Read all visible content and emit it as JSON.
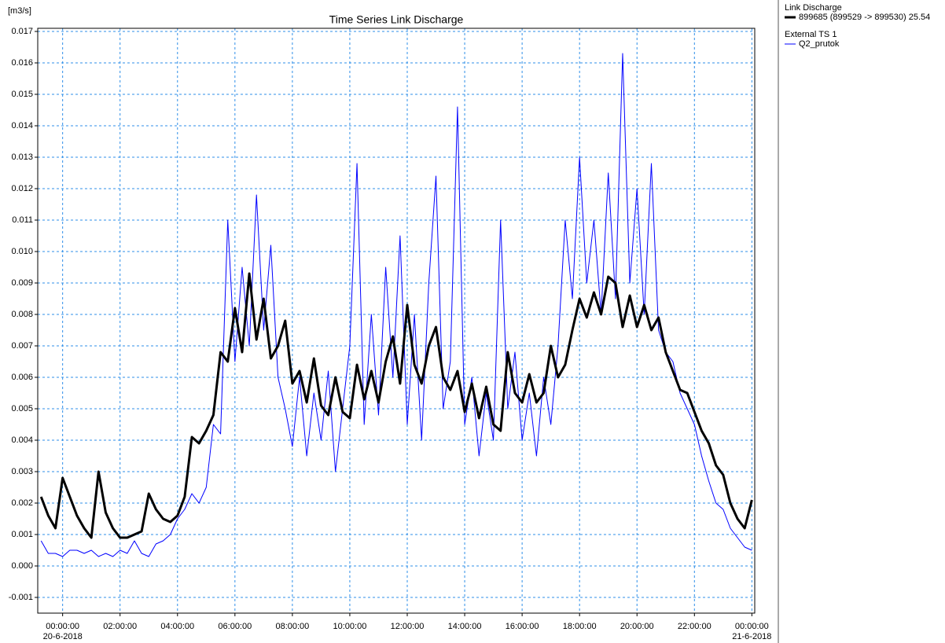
{
  "chart_data": {
    "type": "line",
    "title": "Time Series Link Discharge",
    "y_unit": "[m3/s]",
    "x": [
      "2018-06-19 23:15:00",
      "2018-06-19 23:30:00",
      "2018-06-19 23:45:00",
      "2018-06-20 00:00:00",
      "2018-06-20 00:15:00",
      "2018-06-20 00:30:00",
      "2018-06-20 00:45:00",
      "2018-06-20 01:00:00",
      "2018-06-20 01:15:00",
      "2018-06-20 01:30:00",
      "2018-06-20 01:45:00",
      "2018-06-20 02:00:00",
      "2018-06-20 02:15:00",
      "2018-06-20 02:30:00",
      "2018-06-20 02:45:00",
      "2018-06-20 03:00:00",
      "2018-06-20 03:15:00",
      "2018-06-20 03:30:00",
      "2018-06-20 03:45:00",
      "2018-06-20 04:00:00",
      "2018-06-20 04:15:00",
      "2018-06-20 04:30:00",
      "2018-06-20 04:45:00",
      "2018-06-20 05:00:00",
      "2018-06-20 05:15:00",
      "2018-06-20 05:30:00",
      "2018-06-20 05:45:00",
      "2018-06-20 06:00:00",
      "2018-06-20 06:15:00",
      "2018-06-20 06:30:00",
      "2018-06-20 06:45:00",
      "2018-06-20 07:00:00",
      "2018-06-20 07:15:00",
      "2018-06-20 07:30:00",
      "2018-06-20 07:45:00",
      "2018-06-20 08:00:00",
      "2018-06-20 08:15:00",
      "2018-06-20 08:30:00",
      "2018-06-20 08:45:00",
      "2018-06-20 09:00:00",
      "2018-06-20 09:15:00",
      "2018-06-20 09:30:00",
      "2018-06-20 09:45:00",
      "2018-06-20 10:00:00",
      "2018-06-20 10:15:00",
      "2018-06-20 10:30:00",
      "2018-06-20 10:45:00",
      "2018-06-20 11:00:00",
      "2018-06-20 11:15:00",
      "2018-06-20 11:30:00",
      "2018-06-20 11:45:00",
      "2018-06-20 12:00:00",
      "2018-06-20 12:15:00",
      "2018-06-20 12:30:00",
      "2018-06-20 12:45:00",
      "2018-06-20 13:00:00",
      "2018-06-20 13:15:00",
      "2018-06-20 13:30:00",
      "2018-06-20 13:45:00",
      "2018-06-20 14:00:00",
      "2018-06-20 14:15:00",
      "2018-06-20 14:30:00",
      "2018-06-20 14:45:00",
      "2018-06-20 15:00:00",
      "2018-06-20 15:15:00",
      "2018-06-20 15:30:00",
      "2018-06-20 15:45:00",
      "2018-06-20 16:00:00",
      "2018-06-20 16:15:00",
      "2018-06-20 16:30:00",
      "2018-06-20 16:45:00",
      "2018-06-20 17:00:00",
      "2018-06-20 17:15:00",
      "2018-06-20 17:30:00",
      "2018-06-20 17:45:00",
      "2018-06-20 18:00:00",
      "2018-06-20 18:15:00",
      "2018-06-20 18:30:00",
      "2018-06-20 18:45:00",
      "2018-06-20 19:00:00",
      "2018-06-20 19:15:00",
      "2018-06-20 19:30:00",
      "2018-06-20 19:45:00",
      "2018-06-20 20:00:00",
      "2018-06-20 20:15:00",
      "2018-06-20 20:30:00",
      "2018-06-20 20:45:00",
      "2018-06-20 21:00:00",
      "2018-06-20 21:15:00",
      "2018-06-20 21:30:00",
      "2018-06-20 21:45:00",
      "2018-06-20 22:00:00",
      "2018-06-20 22:15:00",
      "2018-06-20 22:30:00",
      "2018-06-20 22:45:00",
      "2018-06-20 23:00:00",
      "2018-06-20 23:15:00",
      "2018-06-20 23:30:00",
      "2018-06-20 23:45:00",
      "2018-06-21 00:00:00"
    ],
    "series": [
      {
        "group": "Link Discharge",
        "name": "899685 (899529 -> 899530)  25.54",
        "color": "#000000",
        "width": 3,
        "values": [
          0.0022,
          0.0016,
          0.0012,
          0.0028,
          0.0022,
          0.0016,
          0.0012,
          0.0009,
          0.003,
          0.0017,
          0.0012,
          0.0009,
          0.0009,
          0.001,
          0.0011,
          0.0023,
          0.0018,
          0.0015,
          0.0014,
          0.0016,
          0.0022,
          0.0041,
          0.0039,
          0.0043,
          0.0048,
          0.0068,
          0.0065,
          0.0082,
          0.0068,
          0.0093,
          0.0072,
          0.0085,
          0.0066,
          0.007,
          0.0078,
          0.0058,
          0.0062,
          0.0052,
          0.0066,
          0.0051,
          0.0048,
          0.006,
          0.0049,
          0.0047,
          0.0064,
          0.0053,
          0.0062,
          0.0052,
          0.0065,
          0.0073,
          0.0058,
          0.0083,
          0.0064,
          0.0058,
          0.007,
          0.0076,
          0.006,
          0.0056,
          0.0062,
          0.0049,
          0.0058,
          0.0047,
          0.0057,
          0.0045,
          0.0043,
          0.0068,
          0.0055,
          0.0052,
          0.0061,
          0.0052,
          0.0055,
          0.007,
          0.006,
          0.0064,
          0.0075,
          0.0085,
          0.0079,
          0.0087,
          0.008,
          0.0092,
          0.009,
          0.0076,
          0.0086,
          0.0076,
          0.0083,
          0.0075,
          0.0079,
          0.0068,
          0.0062,
          0.0056,
          0.0055,
          0.0049,
          0.0043,
          0.0039,
          0.0032,
          0.0029,
          0.002,
          0.0015,
          0.0012,
          0.0021
        ]
      },
      {
        "group": "External TS 1",
        "name": "Q2_prutok",
        "color": "#0000ff",
        "width": 1,
        "values": [
          0.0008,
          0.0004,
          0.0004,
          0.0003,
          0.0005,
          0.0005,
          0.0004,
          0.0005,
          0.0003,
          0.0004,
          0.0003,
          0.0005,
          0.0004,
          0.0008,
          0.0004,
          0.0003,
          0.0007,
          0.0008,
          0.001,
          0.0015,
          0.0018,
          0.0023,
          0.002,
          0.0025,
          0.0045,
          0.0042,
          0.011,
          0.0065,
          0.0095,
          0.007,
          0.0118,
          0.0075,
          0.0102,
          0.006,
          0.005,
          0.0038,
          0.006,
          0.0035,
          0.0055,
          0.004,
          0.0062,
          0.003,
          0.005,
          0.007,
          0.0128,
          0.0045,
          0.008,
          0.0048,
          0.0095,
          0.006,
          0.0105,
          0.0045,
          0.008,
          0.004,
          0.009,
          0.0124,
          0.005,
          0.0065,
          0.0146,
          0.0045,
          0.006,
          0.0035,
          0.0055,
          0.004,
          0.011,
          0.005,
          0.0068,
          0.004,
          0.0055,
          0.0035,
          0.006,
          0.0045,
          0.007,
          0.011,
          0.0085,
          0.013,
          0.009,
          0.011,
          0.008,
          0.0125,
          0.0085,
          0.0163,
          0.009,
          0.012,
          0.008,
          0.0128,
          0.0075,
          0.0068,
          0.0065,
          0.0055,
          0.005,
          0.0045,
          0.0035,
          0.0027,
          0.002,
          0.0018,
          0.0012,
          0.0009,
          0.0006,
          0.0005
        ]
      }
    ],
    "xlim": [
      "2018-06-19 23:08:00",
      "2018-06-21 00:06:00"
    ],
    "xticks": [
      {
        "value": "2018-06-20 00:00:00",
        "label": "00:00:00"
      },
      {
        "value": "2018-06-20 02:00:00",
        "label": "02:00:00"
      },
      {
        "value": "2018-06-20 04:00:00",
        "label": "04:00:00"
      },
      {
        "value": "2018-06-20 06:00:00",
        "label": "06:00:00"
      },
      {
        "value": "2018-06-20 08:00:00",
        "label": "08:00:00"
      },
      {
        "value": "2018-06-20 10:00:00",
        "label": "10:00:00"
      },
      {
        "value": "2018-06-20 12:00:00",
        "label": "12:00:00"
      },
      {
        "value": "2018-06-20 14:00:00",
        "label": "14:00:00"
      },
      {
        "value": "2018-06-20 16:00:00",
        "label": "16:00:00"
      },
      {
        "value": "2018-06-20 18:00:00",
        "label": "18:00:00"
      },
      {
        "value": "2018-06-20 20:00:00",
        "label": "20:00:00"
      },
      {
        "value": "2018-06-20 22:00:00",
        "label": "22:00:00"
      },
      {
        "value": "2018-06-21 00:00:00",
        "label": "00:00:00"
      }
    ],
    "xtick_dates": [
      {
        "value": "2018-06-20 00:00:00",
        "label": "20-6-2018"
      },
      {
        "value": "2018-06-21 00:00:00",
        "label": "21-6-2018"
      }
    ],
    "ylim": [
      -0.0015,
      0.0171
    ],
    "yticks": [
      -0.001,
      {
        "value": 0,
        "label": "0.000"
      },
      0.001,
      0.002,
      0.003,
      0.004,
      0.005,
      0.006,
      0.007,
      0.008,
      0.009,
      {
        "value": 0.01,
        "label": "0.010"
      },
      0.011,
      0.012,
      0.013,
      0.014,
      0.015,
      0.016,
      0.017
    ],
    "grid": true
  }
}
